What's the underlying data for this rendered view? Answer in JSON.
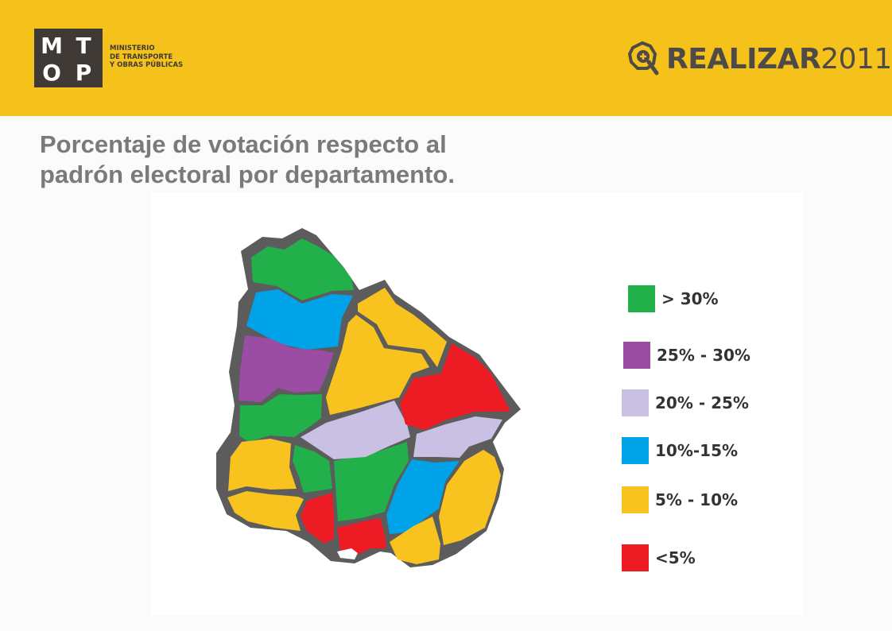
{
  "header": {
    "ministry_lines": [
      "MINISTERIO",
      "DE TRANSPORTE",
      "Y OBRAS PÚBLICAS"
    ],
    "logo_letters": [
      "M",
      "T",
      "O",
      "P"
    ],
    "brand_word": "REALIZAR",
    "brand_year": "2011",
    "colors": {
      "background": "#f5c21b",
      "logo": "#3f3a36"
    }
  },
  "title_lines": [
    "Porcentaje de votación respecto al",
    "padrón electoral por departamento."
  ],
  "legend": [
    {
      "label": "> 30%",
      "color": "#22b04b"
    },
    {
      "label": "25% - 30%",
      "color": "#9b4ca3"
    },
    {
      "label": "20% - 25%",
      "color": "#c9c0e3"
    },
    {
      "label": "10%-15%",
      "color": "#00a2e8"
    },
    {
      "label": "5% - 10%",
      "color": "#f9c31f"
    },
    {
      "label": "<5%",
      "color": "#ed1c24"
    }
  ],
  "regions": [
    {
      "name": "artigas",
      "category": "> 30%"
    },
    {
      "name": "salto",
      "category": "10%-15%"
    },
    {
      "name": "paysandu",
      "category": "25% - 30%"
    },
    {
      "name": "rio-negro",
      "category": "> 30%"
    },
    {
      "name": "soriano",
      "category": "5% - 10%"
    },
    {
      "name": "colonia",
      "category": "5% - 10%"
    },
    {
      "name": "san-jose",
      "category": "<5%"
    },
    {
      "name": "flores",
      "category": "> 30%"
    },
    {
      "name": "florida",
      "category": "> 30%"
    },
    {
      "name": "durazno",
      "category": "20% - 25%"
    },
    {
      "name": "tacuarembo",
      "category": "5% - 10%"
    },
    {
      "name": "rivera",
      "category": "5% - 10%"
    },
    {
      "name": "cerro-largo",
      "category": "<5%"
    },
    {
      "name": "treinta-y-tres",
      "category": "20% - 25%"
    },
    {
      "name": "lavalleja",
      "category": "10%-15%"
    },
    {
      "name": "rocha",
      "category": "5% - 10%"
    },
    {
      "name": "maldonado",
      "category": "5% - 10%"
    },
    {
      "name": "canelones",
      "category": "<5%"
    },
    {
      "name": "montevideo",
      "category": ""
    }
  ]
}
